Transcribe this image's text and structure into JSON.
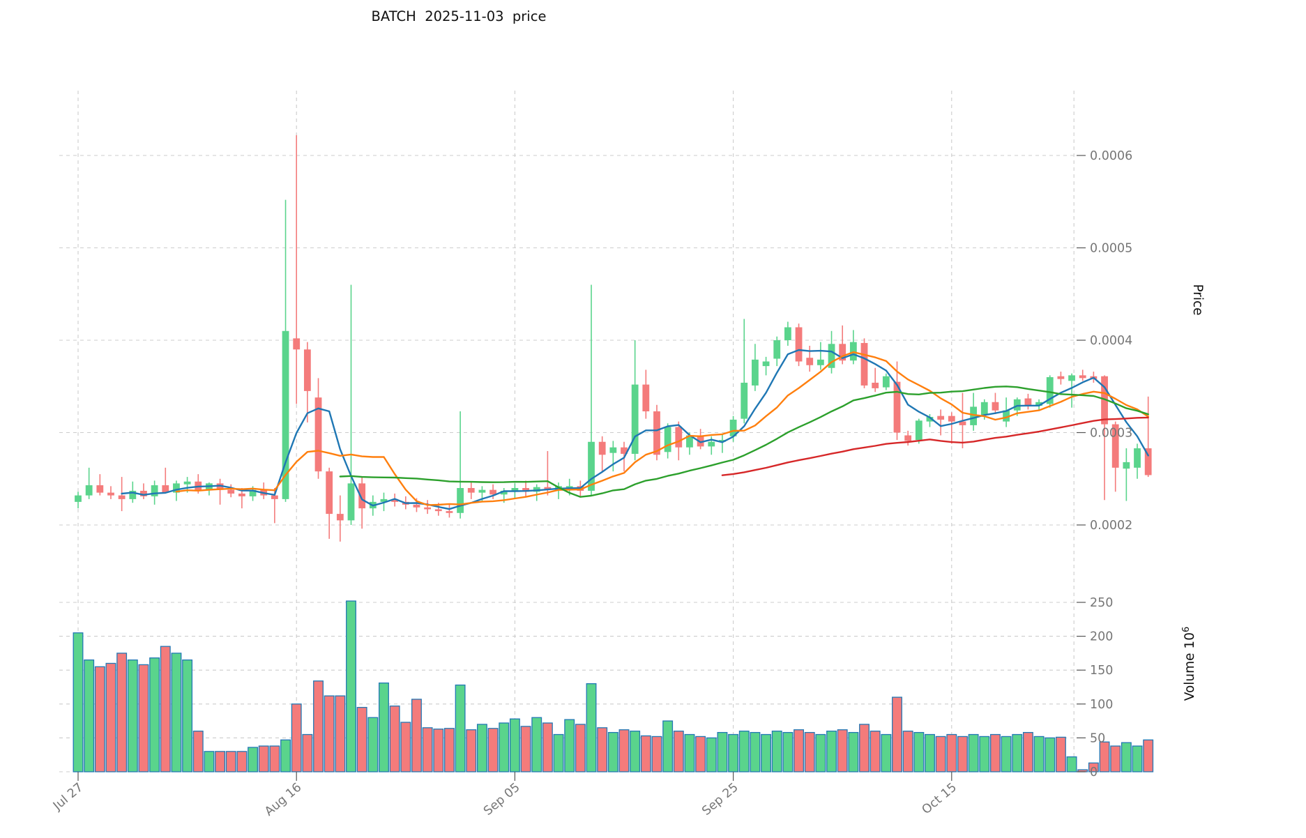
{
  "title": "BATCH  2025-11-03  price",
  "chart_data": {
    "type": "candlestick",
    "title": "BATCH  2025-11-03  price",
    "price_axis": {
      "label": "Price",
      "ticks": [
        {
          "label": "0.0002",
          "value": 200
        },
        {
          "label": "0.0003",
          "value": 300
        },
        {
          "label": "0.0004",
          "value": 400
        },
        {
          "label": "0.0005",
          "value": 500
        },
        {
          "label": "0.0006",
          "value": 600
        }
      ]
    },
    "volume_axis": {
      "label": "Volume",
      "unit_base": "10",
      "unit_exp": "6",
      "ticks": [
        {
          "label": "0",
          "value": 0
        },
        {
          "label": "50",
          "value": 50
        },
        {
          "label": "100",
          "value": 100
        },
        {
          "label": "150",
          "value": 150
        },
        {
          "label": "200",
          "value": 200
        },
        {
          "label": "250",
          "value": 250
        }
      ]
    },
    "x_ticks": [
      {
        "label": "Jul 27",
        "index": 0
      },
      {
        "label": "Aug 16",
        "index": 20
      },
      {
        "label": "Sep 05",
        "index": 40
      },
      {
        "label": "Sep 25",
        "index": 60
      },
      {
        "label": "Oct 15",
        "index": 80
      }
    ],
    "extra_gridline_index": 91.2,
    "price_unit_multiplier": 1e-06,
    "volume_unit_multiplier": 1000000.0,
    "note_series_format": "candles entries are [open, high, low, close, volume] with prices in 1e-6 and volume in 1e6 units",
    "candles": [
      [
        225,
        236,
        218,
        232,
        205
      ],
      [
        232,
        262,
        228,
        243,
        165
      ],
      [
        243,
        255,
        232,
        235,
        155
      ],
      [
        235,
        242,
        228,
        232,
        160
      ],
      [
        232,
        252,
        215,
        228,
        175
      ],
      [
        228,
        247,
        224,
        237,
        165
      ],
      [
        237,
        245,
        228,
        231,
        158
      ],
      [
        231,
        248,
        222,
        243,
        168
      ],
      [
        243,
        262,
        235,
        235,
        185
      ],
      [
        235,
        248,
        226,
        245,
        175
      ],
      [
        244,
        252,
        235,
        247,
        165
      ],
      [
        247,
        255,
        234,
        238,
        60
      ],
      [
        238,
        246,
        232,
        245,
        30
      ],
      [
        245,
        250,
        222,
        238,
        30
      ],
      [
        238,
        244,
        230,
        234,
        30
      ],
      [
        234,
        240,
        218,
        231,
        30
      ],
      [
        231,
        242,
        226,
        238,
        36
      ],
      [
        238,
        246,
        228,
        232,
        38
      ],
      [
        232,
        240,
        202,
        228,
        38
      ],
      [
        228,
        552,
        225,
        410,
        47
      ],
      [
        402,
        622,
        331,
        390,
        100
      ],
      [
        390,
        398,
        311,
        345,
        55
      ],
      [
        338,
        359,
        250,
        258,
        134
      ],
      [
        258,
        262,
        185,
        212,
        112
      ],
      [
        212,
        232,
        182,
        205,
        112
      ],
      [
        205,
        460,
        200,
        245,
        252
      ],
      [
        245,
        252,
        196,
        218,
        95
      ],
      [
        218,
        232,
        210,
        225,
        80
      ],
      [
        225,
        235,
        215,
        228,
        131
      ],
      [
        228,
        234,
        220,
        225,
        97
      ],
      [
        225,
        231,
        217,
        222,
        73
      ],
      [
        222,
        229,
        214,
        219,
        107
      ],
      [
        219,
        227,
        212,
        217,
        65
      ],
      [
        217,
        224,
        210,
        215,
        63
      ],
      [
        215,
        222,
        208,
        213,
        64
      ],
      [
        213,
        323,
        207,
        240,
        128
      ],
      [
        240,
        246,
        228,
        235,
        62
      ],
      [
        235,
        242,
        225,
        238,
        70
      ],
      [
        238,
        244,
        228,
        233,
        64
      ],
      [
        233,
        240,
        224,
        237,
        72
      ],
      [
        237,
        245,
        228,
        240,
        78
      ],
      [
        240,
        248,
        230,
        236,
        67
      ],
      [
        236,
        244,
        226,
        241,
        80
      ],
      [
        241,
        280,
        232,
        238,
        72
      ],
      [
        238,
        246,
        228,
        242,
        55
      ],
      [
        239,
        250,
        232,
        242,
        77
      ],
      [
        242,
        248,
        230,
        237,
        70
      ],
      [
        237,
        460,
        232,
        290,
        130
      ],
      [
        290,
        296,
        258,
        276,
        65
      ],
      [
        278,
        291,
        258,
        284,
        58
      ],
      [
        284,
        290,
        258,
        277,
        62
      ],
      [
        277,
        400,
        270,
        352,
        60
      ],
      [
        352,
        368,
        315,
        323,
        53
      ],
      [
        323,
        330,
        270,
        276,
        52
      ],
      [
        279,
        310,
        272,
        306,
        75
      ],
      [
        306,
        312,
        270,
        284,
        60
      ],
      [
        284,
        300,
        276,
        297,
        55
      ],
      [
        297,
        304,
        282,
        285,
        52
      ],
      [
        285,
        296,
        276,
        290,
        50
      ],
      [
        290,
        298,
        278,
        292,
        58
      ],
      [
        296,
        318,
        290,
        314,
        55
      ],
      [
        315,
        423,
        310,
        354,
        60
      ],
      [
        351,
        396,
        345,
        379,
        58
      ],
      [
        372,
        382,
        362,
        377,
        55
      ],
      [
        380,
        404,
        372,
        400,
        60
      ],
      [
        400,
        420,
        394,
        414,
        58
      ],
      [
        414,
        418,
        372,
        377,
        62
      ],
      [
        381,
        394,
        366,
        373,
        58
      ],
      [
        373,
        398,
        368,
        379,
        55
      ],
      [
        370,
        410,
        364,
        396,
        60
      ],
      [
        396,
        416,
        374,
        378,
        62
      ],
      [
        378,
        411,
        374,
        398,
        58
      ],
      [
        397,
        402,
        348,
        351,
        70
      ],
      [
        354,
        370,
        344,
        348,
        60
      ],
      [
        349,
        364,
        346,
        361,
        55
      ],
      [
        355,
        377,
        292,
        300,
        110
      ],
      [
        297,
        302,
        286,
        291,
        60
      ],
      [
        292,
        315,
        288,
        313,
        58
      ],
      [
        312,
        320,
        306,
        317,
        55
      ],
      [
        318,
        325,
        297,
        314,
        52
      ],
      [
        318,
        322,
        288,
        312,
        55
      ],
      [
        312,
        343,
        283,
        308,
        52
      ],
      [
        308,
        343,
        302,
        328,
        55
      ],
      [
        319,
        336,
        314,
        333,
        52
      ],
      [
        333,
        343,
        320,
        324,
        55
      ],
      [
        312,
        338,
        306,
        324,
        52
      ],
      [
        324,
        338,
        318,
        336,
        55
      ],
      [
        337,
        342,
        325,
        329,
        58
      ],
      [
        329,
        336,
        324,
        333,
        52
      ],
      [
        331,
        362,
        327,
        360,
        50
      ],
      [
        361,
        366,
        352,
        358,
        51
      ],
      [
        356,
        364,
        327,
        362,
        22
      ],
      [
        362,
        368,
        356,
        359,
        3
      ],
      [
        361,
        366,
        354,
        358,
        13
      ],
      [
        361,
        362,
        227,
        309,
        44
      ],
      [
        309,
        312,
        236,
        262,
        38
      ],
      [
        261,
        283,
        226,
        268,
        43
      ],
      [
        262,
        288,
        250,
        283,
        38
      ],
      [
        283,
        339,
        252,
        254,
        47
      ]
    ],
    "moving_averages": [
      {
        "name": "MA5",
        "window": 5,
        "color": "#1f77b4"
      },
      {
        "name": "MA10",
        "window": 10,
        "color": "#ff7f0e"
      },
      {
        "name": "MA25",
        "window": 25,
        "color": "#2ca02c"
      },
      {
        "name": "MA60",
        "window": 60,
        "color": "#d62728"
      }
    ],
    "colors": {
      "up": "#5ad48c",
      "down": "#f47b7b",
      "volume_border": "#2278b5",
      "grid": "#cccccc",
      "tick_text": "#767676",
      "tick_mark": "#555555",
      "title_text": "#111111"
    },
    "layout": {
      "grid": "dashed",
      "legend": "none",
      "price_panel": "top",
      "volume_panel": "bottom"
    }
  }
}
